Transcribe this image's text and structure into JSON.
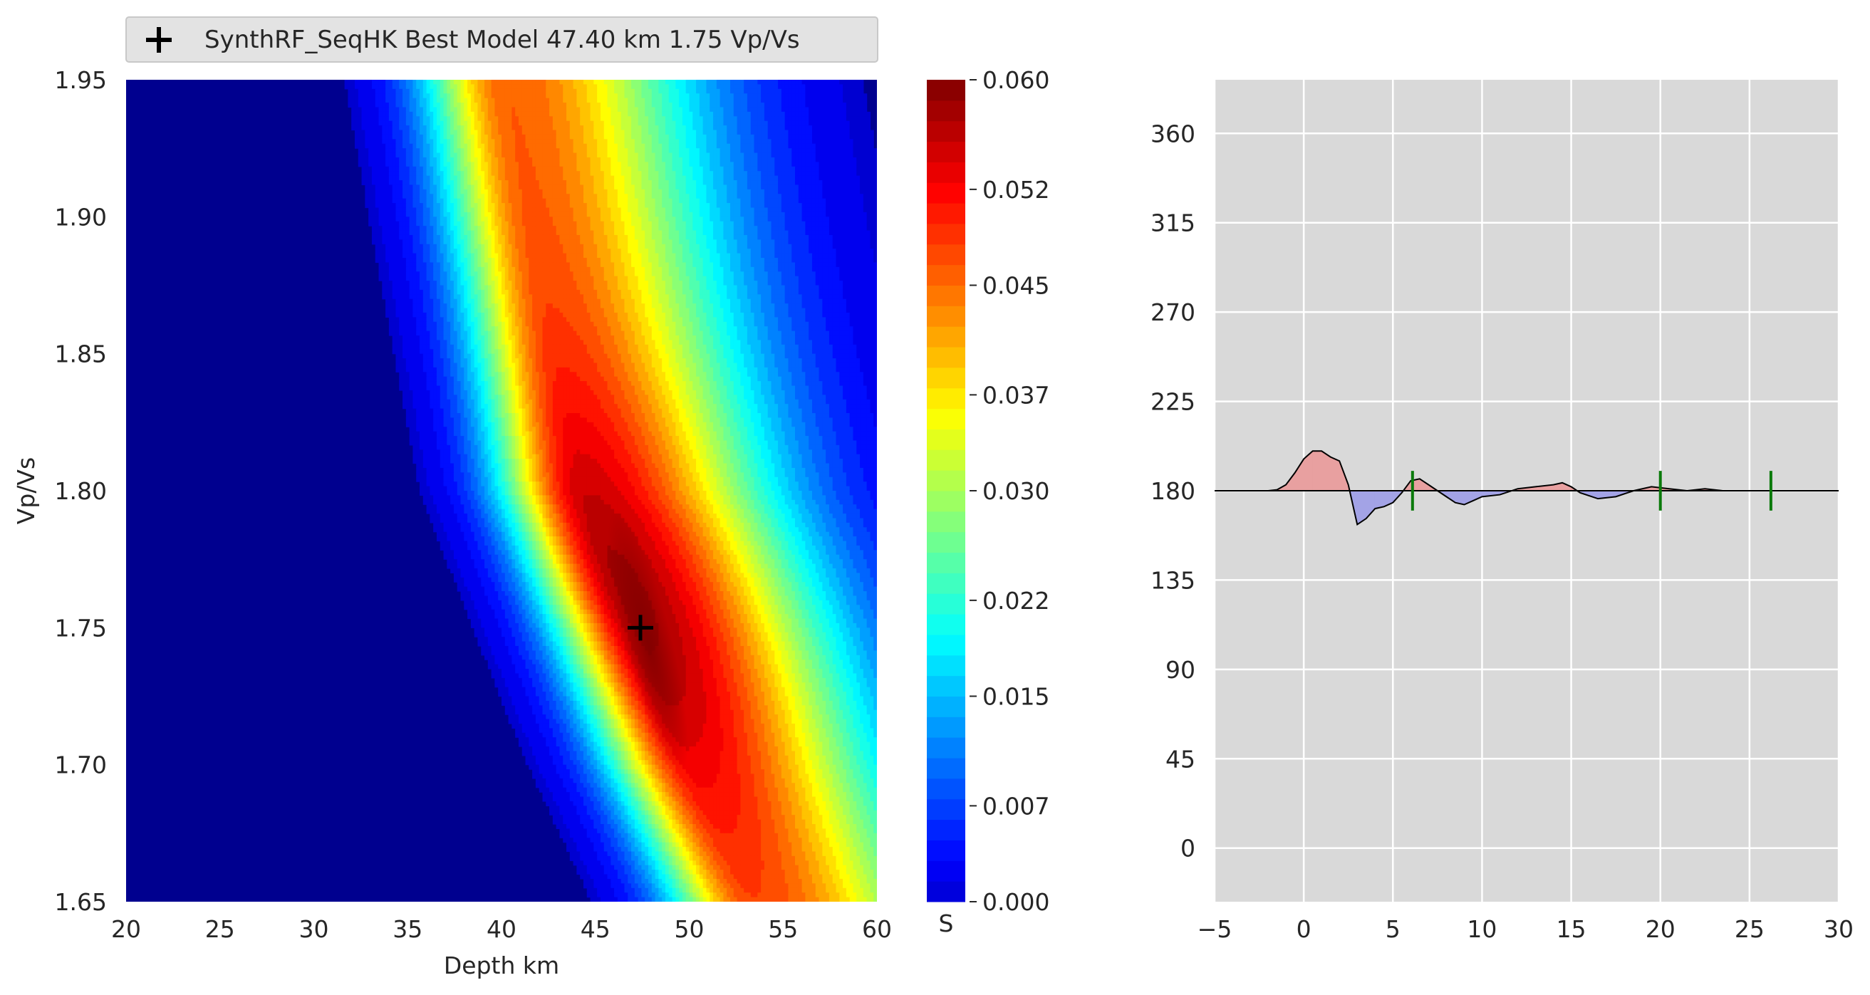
{
  "chart_data": [
    {
      "type": "heatmap",
      "title": "",
      "xlabel": "Depth km",
      "ylabel": "Vp/Vs",
      "xlim": [
        20,
        60
      ],
      "ylim": [
        1.65,
        1.95
      ],
      "xticks": [
        "20",
        "25",
        "30",
        "35",
        "40",
        "45",
        "50",
        "55",
        "60"
      ],
      "yticks": [
        "1.65",
        "1.70",
        "1.75",
        "1.80",
        "1.85",
        "1.90",
        "1.95"
      ],
      "colormap": "jet",
      "colorbar": {
        "label": "S",
        "range": [
          0.0,
          0.06
        ],
        "ticks": [
          "0.000",
          "0.007",
          "0.015",
          "0.022",
          "0.030",
          "0.037",
          "0.045",
          "0.052",
          "0.060"
        ]
      },
      "ridge": [
        {
          "vpvs": 1.95,
          "depth": 40.3
        },
        {
          "vpvs": 1.9,
          "depth": 41.6
        },
        {
          "vpvs": 1.85,
          "depth": 43.0
        },
        {
          "vpvs": 1.8,
          "depth": 44.5
        },
        {
          "vpvs": 1.75,
          "depth": 47.4
        },
        {
          "vpvs": 1.7,
          "depth": 50.2
        },
        {
          "vpvs": 1.65,
          "depth": 53.5
        }
      ],
      "max_value": 0.06,
      "best_model": {
        "depth": 47.4,
        "vpvs": 1.75
      },
      "legend": {
        "label": "SynthRF_SeqHK Best Model 47.40 km 1.75 Vp/Vs",
        "marker": "plus",
        "position": "top"
      },
      "grid": false
    },
    {
      "type": "line",
      "title": "",
      "xlabel": "",
      "ylabel": "",
      "xlim": [
        -5,
        30
      ],
      "ylim": [
        -27,
        387
      ],
      "xticks": [
        "−5",
        "0",
        "5",
        "10",
        "15",
        "20",
        "25",
        "30"
      ],
      "yticks": [
        "0",
        "45",
        "90",
        "135",
        "180",
        "225",
        "270",
        "315",
        "360"
      ],
      "baseline": 180,
      "grid": true,
      "trace": [
        [
          -5,
          180
        ],
        [
          -2,
          180
        ],
        [
          -1.5,
          180.5
        ],
        [
          -1,
          183
        ],
        [
          -0.5,
          189
        ],
        [
          0,
          196
        ],
        [
          0.5,
          200
        ],
        [
          1.0,
          200
        ],
        [
          1.5,
          197
        ],
        [
          2.0,
          195
        ],
        [
          2.5,
          183
        ],
        [
          3.0,
          163
        ],
        [
          3.5,
          166
        ],
        [
          4.0,
          171
        ],
        [
          4.5,
          172
        ],
        [
          5.0,
          174
        ],
        [
          5.5,
          179
        ],
        [
          6.0,
          185
        ],
        [
          6.5,
          186
        ],
        [
          7.0,
          183
        ],
        [
          7.5,
          180
        ],
        [
          8.0,
          177
        ],
        [
          8.5,
          174
        ],
        [
          9.0,
          173
        ],
        [
          9.5,
          175
        ],
        [
          10.0,
          177
        ],
        [
          11.0,
          178
        ],
        [
          12.0,
          181
        ],
        [
          13.0,
          182
        ],
        [
          14.0,
          183
        ],
        [
          14.5,
          184
        ],
        [
          15.0,
          182
        ],
        [
          15.5,
          179
        ],
        [
          16.5,
          176
        ],
        [
          17.5,
          177
        ],
        [
          18.5,
          180
        ],
        [
          19.5,
          182
        ],
        [
          20.5,
          181
        ],
        [
          21.5,
          180
        ],
        [
          22.5,
          181
        ],
        [
          23.5,
          180
        ],
        [
          24.5,
          180
        ],
        [
          26,
          180
        ],
        [
          30,
          180
        ]
      ],
      "positive_fill_color": "#e8a0a0",
      "negative_fill_color": "#a3a3e6",
      "phase_markers": {
        "x": [
          6.1,
          20.0,
          26.2
        ],
        "y_range": [
          170,
          190
        ],
        "color": "#0b7a0b"
      }
    }
  ]
}
